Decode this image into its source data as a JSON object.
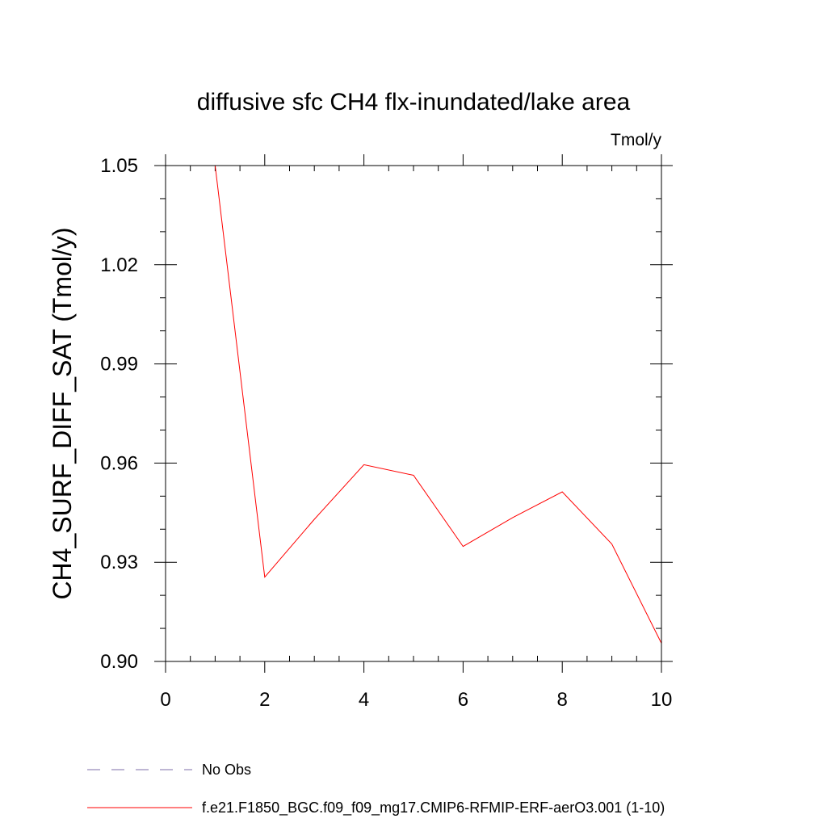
{
  "chart_data": {
    "type": "line",
    "title": "diffusive sfc CH4 flx-inundated/lake area",
    "units": "Tmol/y",
    "xlabel": "",
    "ylabel": "CH4_SURF_DIFF_SAT  (Tmol/y)",
    "xlim": [
      0,
      10
    ],
    "ylim": [
      0.9,
      1.05
    ],
    "x_ticks": [
      0,
      2,
      4,
      6,
      8,
      10
    ],
    "x_tick_labels": [
      "0",
      "2",
      "4",
      "6",
      "8",
      "10"
    ],
    "y_ticks": [
      0.9,
      0.93,
      0.96,
      0.99,
      1.02,
      1.05
    ],
    "y_tick_labels": [
      "0.90",
      "0.93",
      "0.96",
      "0.99",
      "1.02",
      "1.05"
    ],
    "grid": false,
    "legend_position": "bottom-left",
    "series": [
      {
        "name": "f.e21.F1850_BGC.f09_f09_mg17.CMIP6-RFMIP-ERF-aerO3.001 (1-10)",
        "color": "#ff0000",
        "dash": "solid",
        "x": [
          1,
          2,
          3,
          4,
          5,
          6,
          7,
          8,
          9,
          10
        ],
        "y": [
          1.05,
          0.9255,
          0.943,
          0.9595,
          0.9563,
          0.9348,
          0.9435,
          0.9513,
          0.9355,
          0.9055
        ]
      }
    ],
    "legend": [
      {
        "label": "No Obs",
        "color": "#7d6ea8",
        "dash": "dashed"
      },
      {
        "label": "f.e21.F1850_BGC.f09_f09_mg17.CMIP6-RFMIP-ERF-aerO3.001 (1-10)",
        "color": "#ff0000",
        "dash": "solid"
      }
    ]
  }
}
